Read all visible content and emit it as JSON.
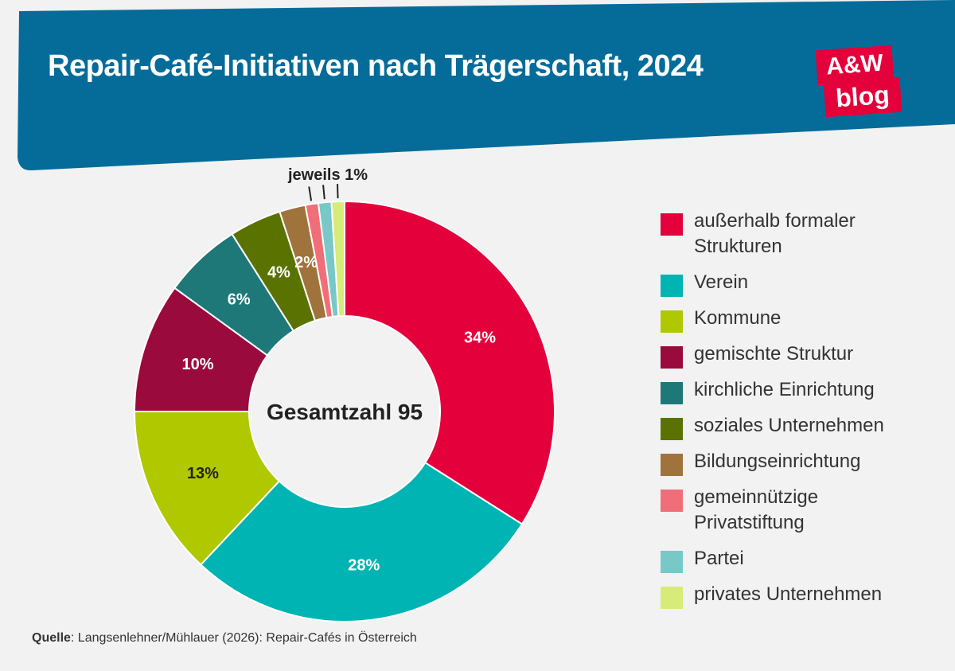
{
  "header": {
    "title": "Repair-Café-Initiativen nach Trägerschaft, 2024",
    "bg_color": "#056c99"
  },
  "logo": {
    "line1": "A&W",
    "line2": "blog",
    "color": "#e4003b"
  },
  "chart_data": {
    "type": "pie",
    "donut": true,
    "center_label": "Gesamtzahl 95",
    "callout_label": "jeweils 1%",
    "slices": [
      {
        "name": "außerhalb formaler Strukturen",
        "value": 34,
        "label": "34%",
        "color": "#e4003b",
        "label_color": "#ffffff"
      },
      {
        "name": "Verein",
        "value": 28,
        "label": "28%",
        "color": "#00b4b4",
        "label_color": "#ffffff"
      },
      {
        "name": "Kommune",
        "value": 13,
        "label": "13%",
        "color": "#afc800",
        "label_color": "#222222"
      },
      {
        "name": "gemischte Struktur",
        "value": 10,
        "label": "10%",
        "color": "#9b0a3c",
        "label_color": "#ffffff"
      },
      {
        "name": "kirchliche Einrichtung",
        "value": 6,
        "label": "6%",
        "color": "#1e7878",
        "label_color": "#ffffff"
      },
      {
        "name": "soziales Unternehmen",
        "value": 4,
        "label": "4%",
        "color": "#5a7300",
        "label_color": "#ffffff"
      },
      {
        "name": "Bildungseinrichtung",
        "value": 2,
        "label": "2%",
        "color": "#a0733c",
        "label_color": "#ffffff"
      },
      {
        "name": "gemeinnützige Privatstiftung",
        "value": 1,
        "label": "",
        "color": "#f06e78",
        "label_color": "#ffffff"
      },
      {
        "name": "Partei",
        "value": 1,
        "label": "",
        "color": "#78c8c8",
        "label_color": "#ffffff"
      },
      {
        "name": "privates Unternehmen",
        "value": 1,
        "label": "",
        "color": "#d7eb78",
        "label_color": "#ffffff"
      }
    ],
    "legend": [
      {
        "lines": [
          "außerhalb formaler",
          "Strukturen"
        ],
        "color": "#e4003b"
      },
      {
        "lines": [
          "Verein"
        ],
        "color": "#00b4b4"
      },
      {
        "lines": [
          "Kommune"
        ],
        "color": "#afc800"
      },
      {
        "lines": [
          "gemischte Struktur"
        ],
        "color": "#9b0a3c"
      },
      {
        "lines": [
          "kirchliche Einrichtung"
        ],
        "color": "#1e7878"
      },
      {
        "lines": [
          "soziales Unternehmen"
        ],
        "color": "#5a7300"
      },
      {
        "lines": [
          "Bildungseinrichtung"
        ],
        "color": "#a0733c"
      },
      {
        "lines": [
          "gemeinnützige",
          "Privatstiftung"
        ],
        "color": "#f06e78"
      },
      {
        "lines": [
          "Partei"
        ],
        "color": "#78c8c8"
      },
      {
        "lines": [
          "privates Unternehmen"
        ],
        "color": "#d7eb78"
      }
    ],
    "legend_placement": "right"
  },
  "source": {
    "label": "Quelle",
    "text": ": Langsenlehner/Mühlauer (2026): Repair-Cafés in Österreich"
  }
}
